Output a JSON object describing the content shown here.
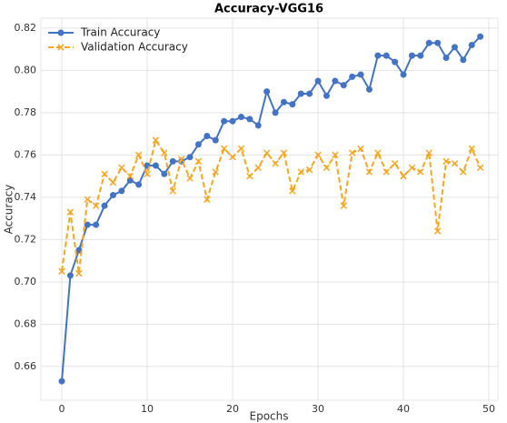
{
  "chart_data": {
    "type": "line",
    "title": "Accuracy-VGG16",
    "x_label": "Epochs",
    "y_label": "Accuracy",
    "x": [
      0,
      1,
      2,
      3,
      4,
      5,
      6,
      7,
      8,
      9,
      10,
      11,
      12,
      13,
      14,
      15,
      16,
      17,
      18,
      19,
      20,
      21,
      22,
      23,
      24,
      25,
      26,
      27,
      28,
      29,
      30,
      31,
      32,
      33,
      34,
      35,
      36,
      37,
      38,
      39,
      40,
      41,
      42,
      43,
      44,
      45,
      46,
      47,
      48,
      49
    ],
    "series": [
      {
        "name": "Train Accuracy",
        "color": "#4472c4",
        "marker": "circle",
        "dashed": false,
        "values": [
          0.653,
          0.703,
          0.715,
          0.727,
          0.727,
          0.736,
          0.741,
          0.743,
          0.748,
          0.746,
          0.755,
          0.755,
          0.751,
          0.757,
          0.757,
          0.759,
          0.765,
          0.769,
          0.767,
          0.776,
          0.776,
          0.778,
          0.777,
          0.774,
          0.79,
          0.78,
          0.785,
          0.784,
          0.789,
          0.789,
          0.795,
          0.788,
          0.795,
          0.793,
          0.797,
          0.798,
          0.791,
          0.807,
          0.807,
          0.804,
          0.798,
          0.807,
          0.807,
          0.813,
          0.813,
          0.806,
          0.811,
          0.805,
          0.812,
          0.816
        ]
      },
      {
        "name": "Validation Accuracy",
        "color": "#f5a623",
        "marker": "x",
        "dashed": true,
        "values": [
          0.705,
          0.733,
          0.704,
          0.739,
          0.736,
          0.751,
          0.747,
          0.754,
          0.75,
          0.76,
          0.751,
          0.767,
          0.761,
          0.743,
          0.758,
          0.749,
          0.757,
          0.739,
          0.752,
          0.763,
          0.759,
          0.763,
          0.75,
          0.754,
          0.761,
          0.756,
          0.761,
          0.743,
          0.752,
          0.753,
          0.76,
          0.754,
          0.76,
          0.736,
          0.761,
          0.763,
          0.752,
          0.761,
          0.752,
          0.756,
          0.75,
          0.754,
          0.752,
          0.761,
          0.724,
          0.757,
          0.756,
          0.752,
          0.763,
          0.754
        ]
      }
    ],
    "xlim": [
      -2.45,
      51.06
    ],
    "ylim": [
      0.644,
      0.8247
    ],
    "xticks": [
      0,
      10,
      20,
      30,
      40,
      50
    ],
    "yticks": [
      0.66,
      0.68,
      {
        "value": 0.7,
        "label": "0.70"
      },
      0.72,
      0.74,
      0.76,
      0.78,
      {
        "value": 0.8,
        "label": "0.80"
      },
      0.82
    ],
    "grid": true,
    "legend": "upper left"
  }
}
